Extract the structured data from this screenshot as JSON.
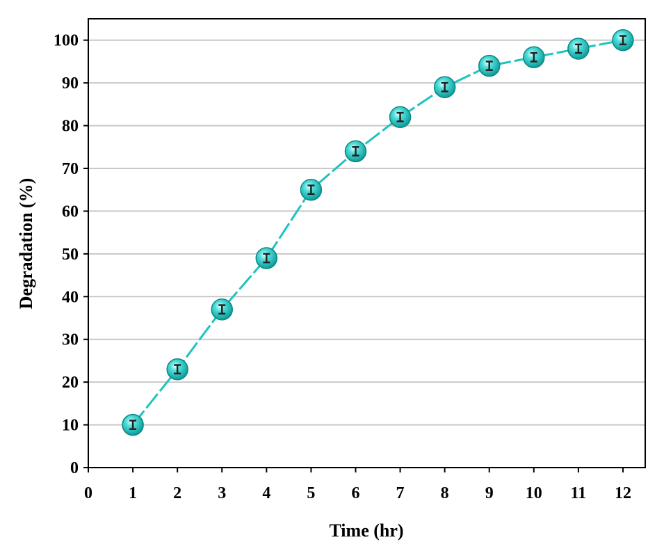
{
  "chart_data": {
    "type": "line",
    "title": "",
    "xlabel": "Time (hr)",
    "ylabel": "Degradation (%)",
    "xlim": [
      0,
      12.5
    ],
    "ylim": [
      0,
      105
    ],
    "xticks": [
      "0",
      "1",
      "2",
      "3",
      "4",
      "5",
      "6",
      "7",
      "8",
      "9",
      "10",
      "11",
      "12"
    ],
    "yticks": [
      "0",
      "10",
      "20",
      "30",
      "40",
      "50",
      "60",
      "70",
      "80",
      "90",
      "100"
    ],
    "grid": "horizontal",
    "series": [
      {
        "name": "Degradation",
        "color": "#1fc3c0",
        "line_style": "dashed",
        "marker": "circle",
        "x": [
          1,
          2,
          3,
          4,
          5,
          6,
          7,
          8,
          9,
          10,
          11,
          12
        ],
        "y": [
          10,
          23,
          37,
          49,
          65,
          74,
          82,
          89,
          94,
          96,
          98,
          100
        ],
        "error": [
          1,
          1,
          1,
          1,
          1,
          1,
          1,
          1,
          1,
          1,
          1,
          1
        ]
      }
    ]
  }
}
